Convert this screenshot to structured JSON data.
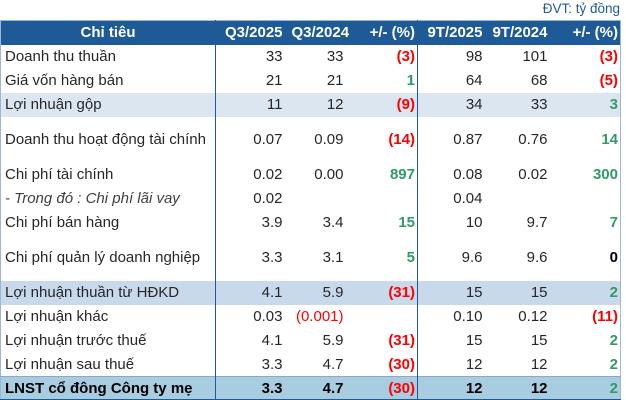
{
  "unit_label": "ĐVT: tỷ đồng",
  "colors": {
    "header_bg": "#1E5A96",
    "accent_blue": "#1E5A96",
    "negative_red": "#FF0000",
    "positive_green": "#339966",
    "row_light_blue": "#DCE6F1",
    "row_mid_blue": "#C9D9EC",
    "row_total_blue": "#A8CCE0"
  },
  "table": {
    "columns": [
      "Chỉ tiêu",
      "Q3/2025",
      "Q3/2024",
      "+/- (%)",
      "9T/2025",
      "9T/2024",
      "+/- (%)"
    ],
    "rows": [
      {
        "label": "Doanh thu thuần",
        "bg": "",
        "italic": false,
        "tall": false,
        "values": [
          "33",
          "33",
          "(3)",
          "98",
          "101",
          "(3)"
        ],
        "tones": [
          "",
          "",
          "red",
          "",
          "",
          "red"
        ]
      },
      {
        "label": "Giá vốn hàng bán",
        "bg": "",
        "italic": false,
        "tall": false,
        "values": [
          "21",
          "21",
          "1",
          "64",
          "68",
          "(5)"
        ],
        "tones": [
          "",
          "",
          "green",
          "",
          "",
          "red"
        ]
      },
      {
        "label": "Lợi nhuận gộp",
        "bg": "light",
        "italic": false,
        "tall": false,
        "values": [
          "11",
          "12",
          "(9)",
          "34",
          "33",
          "3"
        ],
        "tones": [
          "",
          "",
          "red",
          "",
          "",
          "green"
        ]
      },
      {
        "label": "Doanh thu hoạt động tài chính",
        "bg": "",
        "italic": false,
        "tall": true,
        "values": [
          "0.07",
          "0.09",
          "(14)",
          "0.87",
          "0.76",
          "14"
        ],
        "tones": [
          "",
          "",
          "red",
          "",
          "",
          "green"
        ]
      },
      {
        "label": "Chi phí tài chính",
        "bg": "",
        "italic": false,
        "tall": false,
        "values": [
          "0.02",
          "0.00",
          "897",
          "0.08",
          "0.02",
          "300"
        ],
        "tones": [
          "",
          "",
          "green",
          "",
          "",
          "green"
        ]
      },
      {
        "label": "- Trong đó : Chi phí lãi vay",
        "bg": "",
        "italic": true,
        "tall": false,
        "values": [
          "0.02",
          "",
          "",
          "0.04",
          "",
          ""
        ],
        "tones": [
          "",
          "",
          "",
          "",
          "",
          ""
        ]
      },
      {
        "label": "Chi phí bán hàng",
        "bg": "",
        "italic": false,
        "tall": false,
        "values": [
          "3.9",
          "3.4",
          "15",
          "10",
          "9.7",
          "7"
        ],
        "tones": [
          "",
          "",
          "green",
          "",
          "",
          "green"
        ]
      },
      {
        "label": "Chi phí quản lý doanh nghiệp",
        "bg": "",
        "italic": false,
        "tall": true,
        "values": [
          "3.3",
          "3.1",
          "5",
          "9.6",
          "9.6",
          "0"
        ],
        "tones": [
          "",
          "",
          "green",
          "",
          "",
          "bold"
        ]
      },
      {
        "label": "Lợi nhuận thuần từ HĐKD",
        "bg": "mid",
        "italic": false,
        "tall": false,
        "values": [
          "4.1",
          "5.9",
          "(31)",
          "15",
          "15",
          "2"
        ],
        "tones": [
          "",
          "",
          "red",
          "",
          "",
          "green"
        ]
      },
      {
        "label": "Lợi nhuận khác",
        "bg": "",
        "italic": false,
        "tall": false,
        "values": [
          "0.03",
          "(0.001)",
          "",
          "0.10",
          "0.12",
          "(11)"
        ],
        "tones": [
          "",
          "redplain",
          "",
          "",
          "",
          "red"
        ]
      },
      {
        "label": "Lợi nhuận trước thuế",
        "bg": "",
        "italic": false,
        "tall": false,
        "values": [
          "4.1",
          "5.9",
          "(31)",
          "15",
          "15",
          "2"
        ],
        "tones": [
          "",
          "",
          "red",
          "",
          "",
          "green"
        ]
      },
      {
        "label": "Lợi nhuận sau thuế",
        "bg": "",
        "italic": false,
        "tall": false,
        "values": [
          "3.3",
          "4.7",
          "(30)",
          "12",
          "12",
          "2"
        ],
        "tones": [
          "",
          "",
          "red",
          "",
          "",
          "green"
        ]
      },
      {
        "label": "LNST cổ đông Công ty mẹ",
        "bg": "total",
        "italic": false,
        "tall": false,
        "values": [
          "3.3",
          "4.7",
          "(30)",
          "12",
          "12",
          "2"
        ],
        "tones": [
          "",
          "",
          "red",
          "",
          "",
          "green"
        ]
      }
    ]
  },
  "chart_data": {
    "type": "table",
    "title": "",
    "unit": "ĐVT: tỷ đồng",
    "columns": [
      "Chỉ tiêu",
      "Q3/2025",
      "Q3/2024",
      "+/- (%)",
      "9T/2025",
      "9T/2024",
      "+/- (%)"
    ],
    "rows": [
      [
        "Doanh thu thuần",
        "33",
        "33",
        "(3)",
        "98",
        "101",
        "(3)"
      ],
      [
        "Giá vốn hàng bán",
        "21",
        "21",
        "1",
        "64",
        "68",
        "(5)"
      ],
      [
        "Lợi nhuận gộp",
        "11",
        "12",
        "(9)",
        "34",
        "33",
        "3"
      ],
      [
        "Doanh thu hoạt động tài chính",
        "0.07",
        "0.09",
        "(14)",
        "0.87",
        "0.76",
        "14"
      ],
      [
        "Chi phí tài chính",
        "0.02",
        "0.00",
        "897",
        "0.08",
        "0.02",
        "300"
      ],
      [
        "- Trong đó : Chi phí lãi vay",
        "0.02",
        "",
        "",
        "0.04",
        "",
        ""
      ],
      [
        "Chi phí bán hàng",
        "3.9",
        "3.4",
        "15",
        "10",
        "9.7",
        "7"
      ],
      [
        "Chi phí quản lý doanh nghiệp",
        "3.3",
        "3.1",
        "5",
        "9.6",
        "9.6",
        "0"
      ],
      [
        "Lợi nhuận thuần từ HĐKD",
        "4.1",
        "5.9",
        "(31)",
        "15",
        "15",
        "2"
      ],
      [
        "Lợi nhuận khác",
        "0.03",
        "(0.001)",
        "",
        "0.10",
        "0.12",
        "(11)"
      ],
      [
        "Lợi nhuận trước thuế",
        "4.1",
        "5.9",
        "(31)",
        "15",
        "15",
        "2"
      ],
      [
        "Lợi nhuận sau thuế",
        "3.3",
        "4.7",
        "(30)",
        "12",
        "12",
        "2"
      ],
      [
        "LNST cổ đông Công ty mẹ",
        "3.3",
        "4.7",
        "(30)",
        "12",
        "12",
        "2"
      ]
    ]
  }
}
